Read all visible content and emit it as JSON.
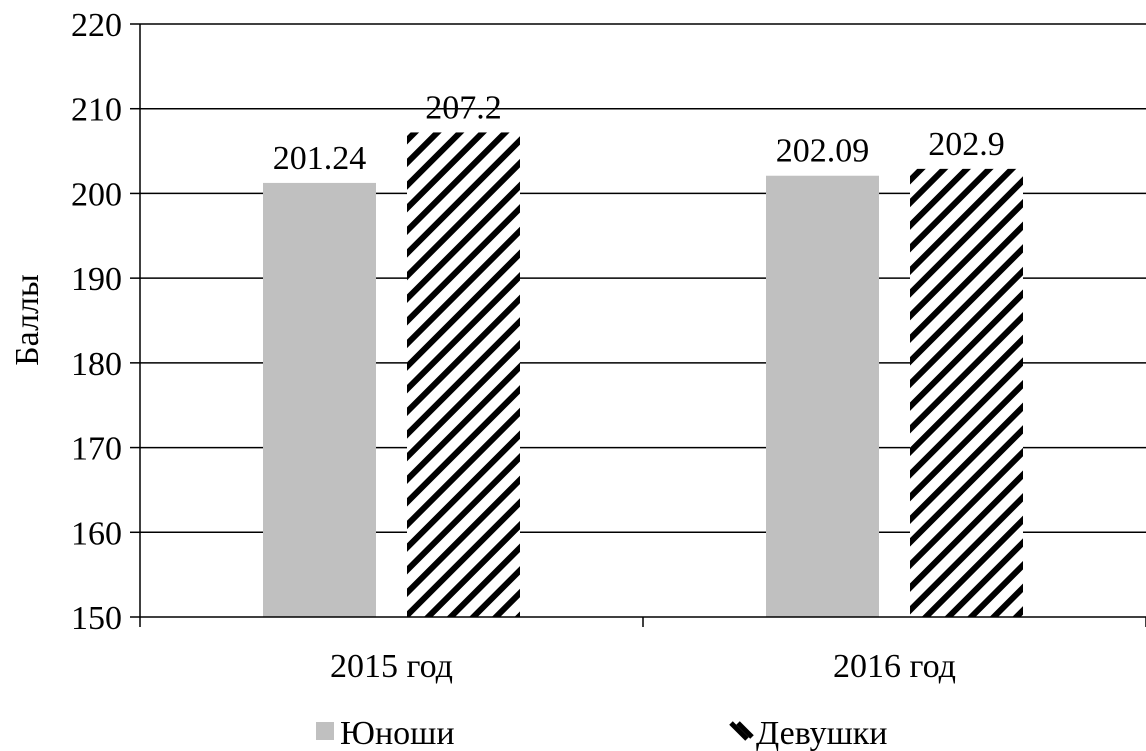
{
  "chart_data": {
    "type": "bar",
    "categories": [
      "2015 год",
      "2016 год"
    ],
    "series": [
      {
        "name": "Юноши",
        "values": [
          201.24,
          202.09
        ],
        "pattern": "solid",
        "color": "#c0c0c0"
      },
      {
        "name": "Девушки",
        "values": [
          207.2,
          202.9
        ],
        "pattern": "diagonal-hatch",
        "color": "#000000"
      }
    ],
    "data_labels": [
      [
        "201.24",
        "202.09"
      ],
      [
        "207.2",
        "202.9"
      ]
    ],
    "xlabel": "",
    "ylabel": "Баллы",
    "ylim": [
      150,
      220
    ],
    "yticks": [
      "150",
      "160",
      "170",
      "180",
      "190",
      "200",
      "210",
      "220"
    ],
    "grid": true,
    "legend_position": "bottom"
  }
}
